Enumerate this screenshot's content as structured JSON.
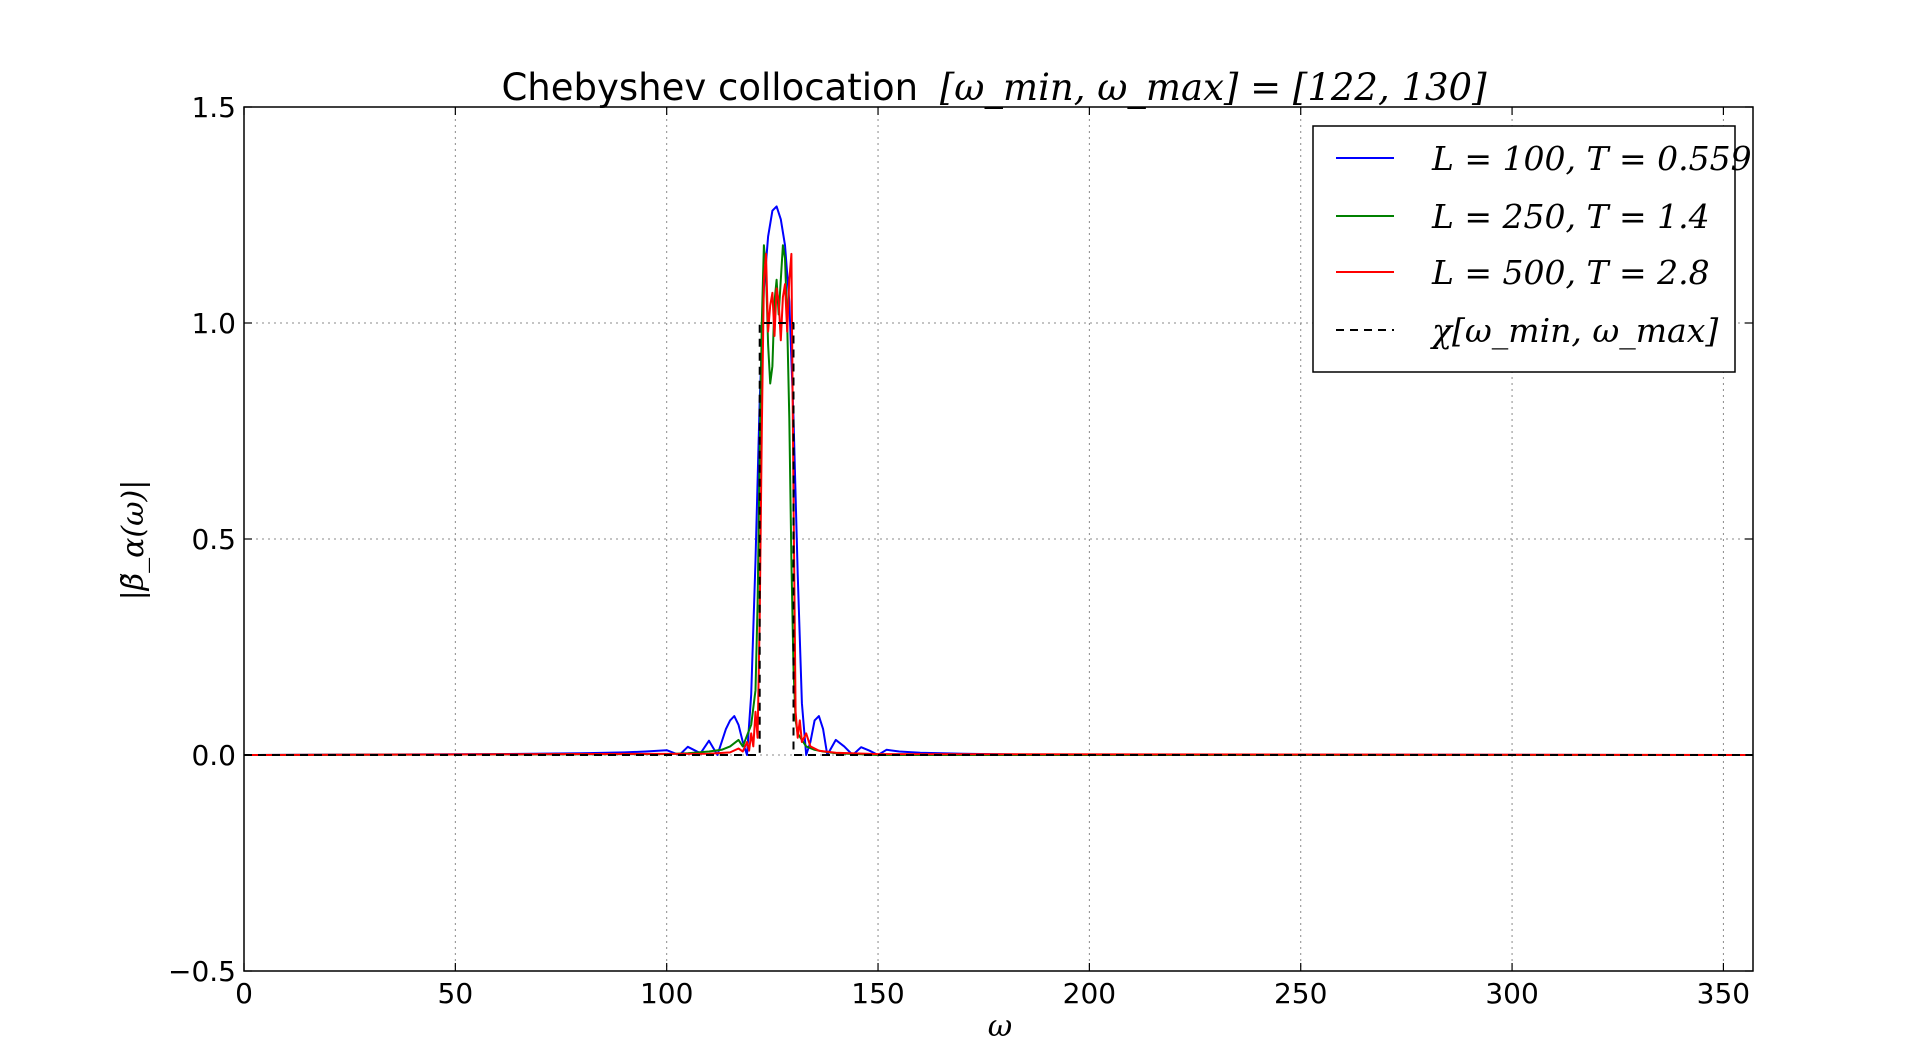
{
  "chart_data": {
    "type": "line",
    "title": "Chebyshev collocation [ω_min, ω_max] = [122, 130]",
    "title_prefix": "Chebyshev collocation",
    "title_math": "[ω_min, ω_max] = [122, 130]",
    "xlabel": "ω",
    "ylabel": "|β̃_α(ω)|",
    "xlim": [
      0,
      357
    ],
    "ylim": [
      -0.5,
      1.5
    ],
    "x_ticks": [
      0,
      50,
      100,
      150,
      200,
      250,
      300,
      350
    ],
    "x_tick_labels": [
      "0",
      "50",
      "100",
      "150",
      "200",
      "250",
      "300",
      "350"
    ],
    "y_ticks": [
      -0.5,
      0.0,
      0.5,
      1.0,
      1.5
    ],
    "y_tick_labels": [
      "−0.5",
      "0.0",
      "0.5",
      "1.0",
      "1.5"
    ],
    "grid": true,
    "legend_position": "top-right",
    "series": [
      {
        "name": "L = 100, T = 0.559",
        "color": "#0000ff",
        "style": "solid",
        "x": [
          0,
          60,
          80,
          90,
          95,
          100,
          103,
          105,
          108,
          110,
          112,
          114,
          115,
          116,
          117,
          118,
          119,
          120,
          121,
          122,
          123,
          124,
          125,
          126,
          127,
          128,
          129,
          130,
          131,
          132,
          133,
          134,
          135,
          136,
          137,
          138,
          140,
          142,
          144,
          146,
          148,
          150,
          152,
          155,
          160,
          170,
          185,
          357
        ],
        "y": [
          0.0,
          0.002,
          0.004,
          0.006,
          0.008,
          0.011,
          0.0,
          0.019,
          0.004,
          0.033,
          0.0,
          0.06,
          0.08,
          0.09,
          0.07,
          0.03,
          0.0,
          0.14,
          0.45,
          0.82,
          1.08,
          1.2,
          1.26,
          1.27,
          1.24,
          1.18,
          1.05,
          0.78,
          0.42,
          0.12,
          0.0,
          0.03,
          0.08,
          0.09,
          0.06,
          0.0,
          0.035,
          0.02,
          0.0,
          0.018,
          0.01,
          0.0,
          0.012,
          0.008,
          0.005,
          0.003,
          0.001,
          0.0
        ]
      },
      {
        "name": "L = 250, T = 1.4",
        "color": "#008000",
        "style": "solid",
        "x": [
          0,
          100,
          105,
          110,
          113,
          115,
          117,
          118,
          119,
          120,
          121,
          121.5,
          122,
          122.5,
          123,
          123.5,
          124,
          124.5,
          125,
          125.5,
          126,
          126.5,
          127,
          127.5,
          128,
          128.5,
          129,
          129.5,
          130,
          130.5,
          131,
          132,
          133,
          135,
          137,
          140,
          145,
          150,
          357
        ],
        "y": [
          0.0,
          0.002,
          0.004,
          0.008,
          0.012,
          0.02,
          0.035,
          0.02,
          0.045,
          0.07,
          0.15,
          0.35,
          0.7,
          1.0,
          1.18,
          1.12,
          0.95,
          0.86,
          0.9,
          1.05,
          1.1,
          1.02,
          1.1,
          1.18,
          1.15,
          1.0,
          0.78,
          0.45,
          0.2,
          0.08,
          0.05,
          0.035,
          0.02,
          0.012,
          0.008,
          0.004,
          0.002,
          0.0,
          0.0
        ]
      },
      {
        "name": "L = 500, T = 2.8",
        "color": "#ff0000",
        "style": "solid",
        "x": [
          0,
          110,
          115,
          117,
          118,
          119,
          119.5,
          120,
          120.5,
          121,
          121.5,
          122,
          122.5,
          123,
          123.5,
          124,
          124.5,
          125,
          125.5,
          126,
          126.5,
          127,
          127.5,
          128,
          128.5,
          129,
          129.5,
          130,
          130.5,
          131,
          131.5,
          132,
          133,
          134,
          136,
          140,
          150,
          357
        ],
        "y": [
          0.0,
          0.003,
          0.006,
          0.015,
          0.008,
          0.03,
          0.01,
          0.05,
          0.02,
          0.1,
          0.04,
          0.32,
          0.75,
          1.1,
          1.16,
          0.98,
          1.04,
          1.07,
          0.97,
          1.08,
          1.05,
          0.96,
          1.06,
          1.09,
          0.98,
          1.1,
          1.16,
          0.6,
          0.1,
          0.04,
          0.08,
          0.03,
          0.05,
          0.02,
          0.01,
          0.005,
          0.002,
          0.0
        ]
      },
      {
        "name": "χ[ω_min, ω_max]",
        "color": "#000000",
        "style": "dashed",
        "x": [
          0,
          122,
          122,
          130,
          130,
          357
        ],
        "y": [
          0,
          0,
          1,
          1,
          0,
          0
        ]
      }
    ]
  },
  "legend": {
    "items": [
      {
        "label": "L = 100, T = 0.559",
        "color": "#0000ff",
        "dashed": false
      },
      {
        "label": "L = 250, T = 1.4",
        "color": "#008000",
        "dashed": false
      },
      {
        "label": "L = 500, T = 2.8",
        "color": "#ff0000",
        "dashed": false
      },
      {
        "label": "χ[ω_min, ω_max]",
        "color": "#000000",
        "dashed": true
      }
    ]
  }
}
